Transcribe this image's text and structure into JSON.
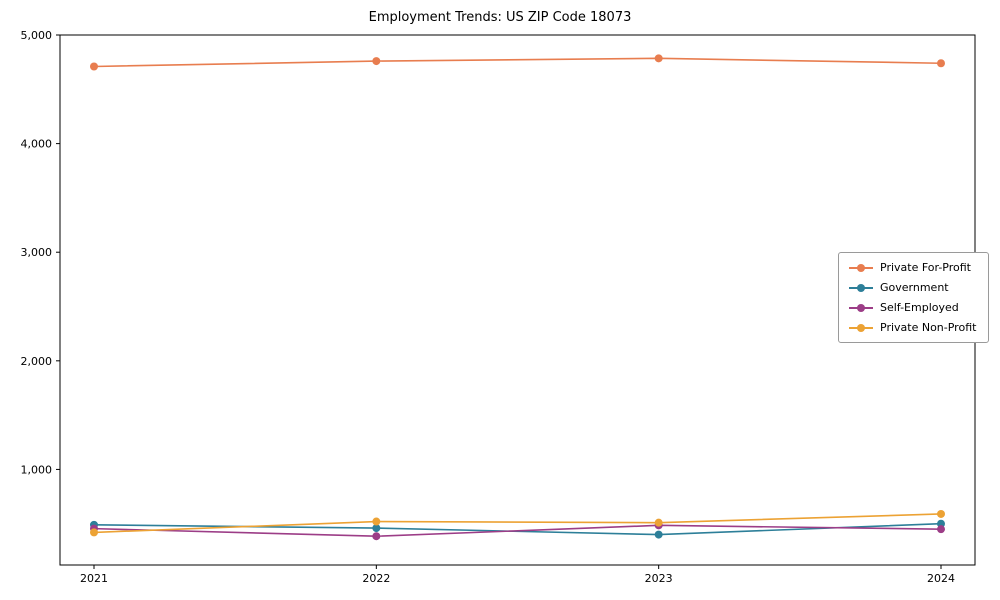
{
  "chart_data": {
    "type": "line",
    "title": "Employment Trends: US ZIP Code 18073",
    "xlabel": "",
    "ylabel": "",
    "x": [
      "2021",
      "2022",
      "2023",
      "2024"
    ],
    "series": [
      {
        "name": "Private For-Profit",
        "color": "#e87d4f",
        "values": [
          4710,
          4760,
          4785,
          4740
        ]
      },
      {
        "name": "Government",
        "color": "#2d7f99",
        "values": [
          490,
          460,
          400,
          500
        ]
      },
      {
        "name": "Self-Employed",
        "color": "#9c3d87",
        "values": [
          455,
          385,
          485,
          450
        ]
      },
      {
        "name": "Private Non-Profit",
        "color": "#eca234",
        "values": [
          420,
          520,
          510,
          590
        ]
      }
    ],
    "ylim": [
      120,
      5000
    ],
    "yticks": [
      1000,
      2000,
      3000,
      4000,
      5000
    ],
    "ytick_labels": [
      "1,000",
      "2,000",
      "3,000",
      "4,000",
      "5,000"
    ],
    "grid": false,
    "legend_position": "right-middle",
    "marker": "circle"
  }
}
